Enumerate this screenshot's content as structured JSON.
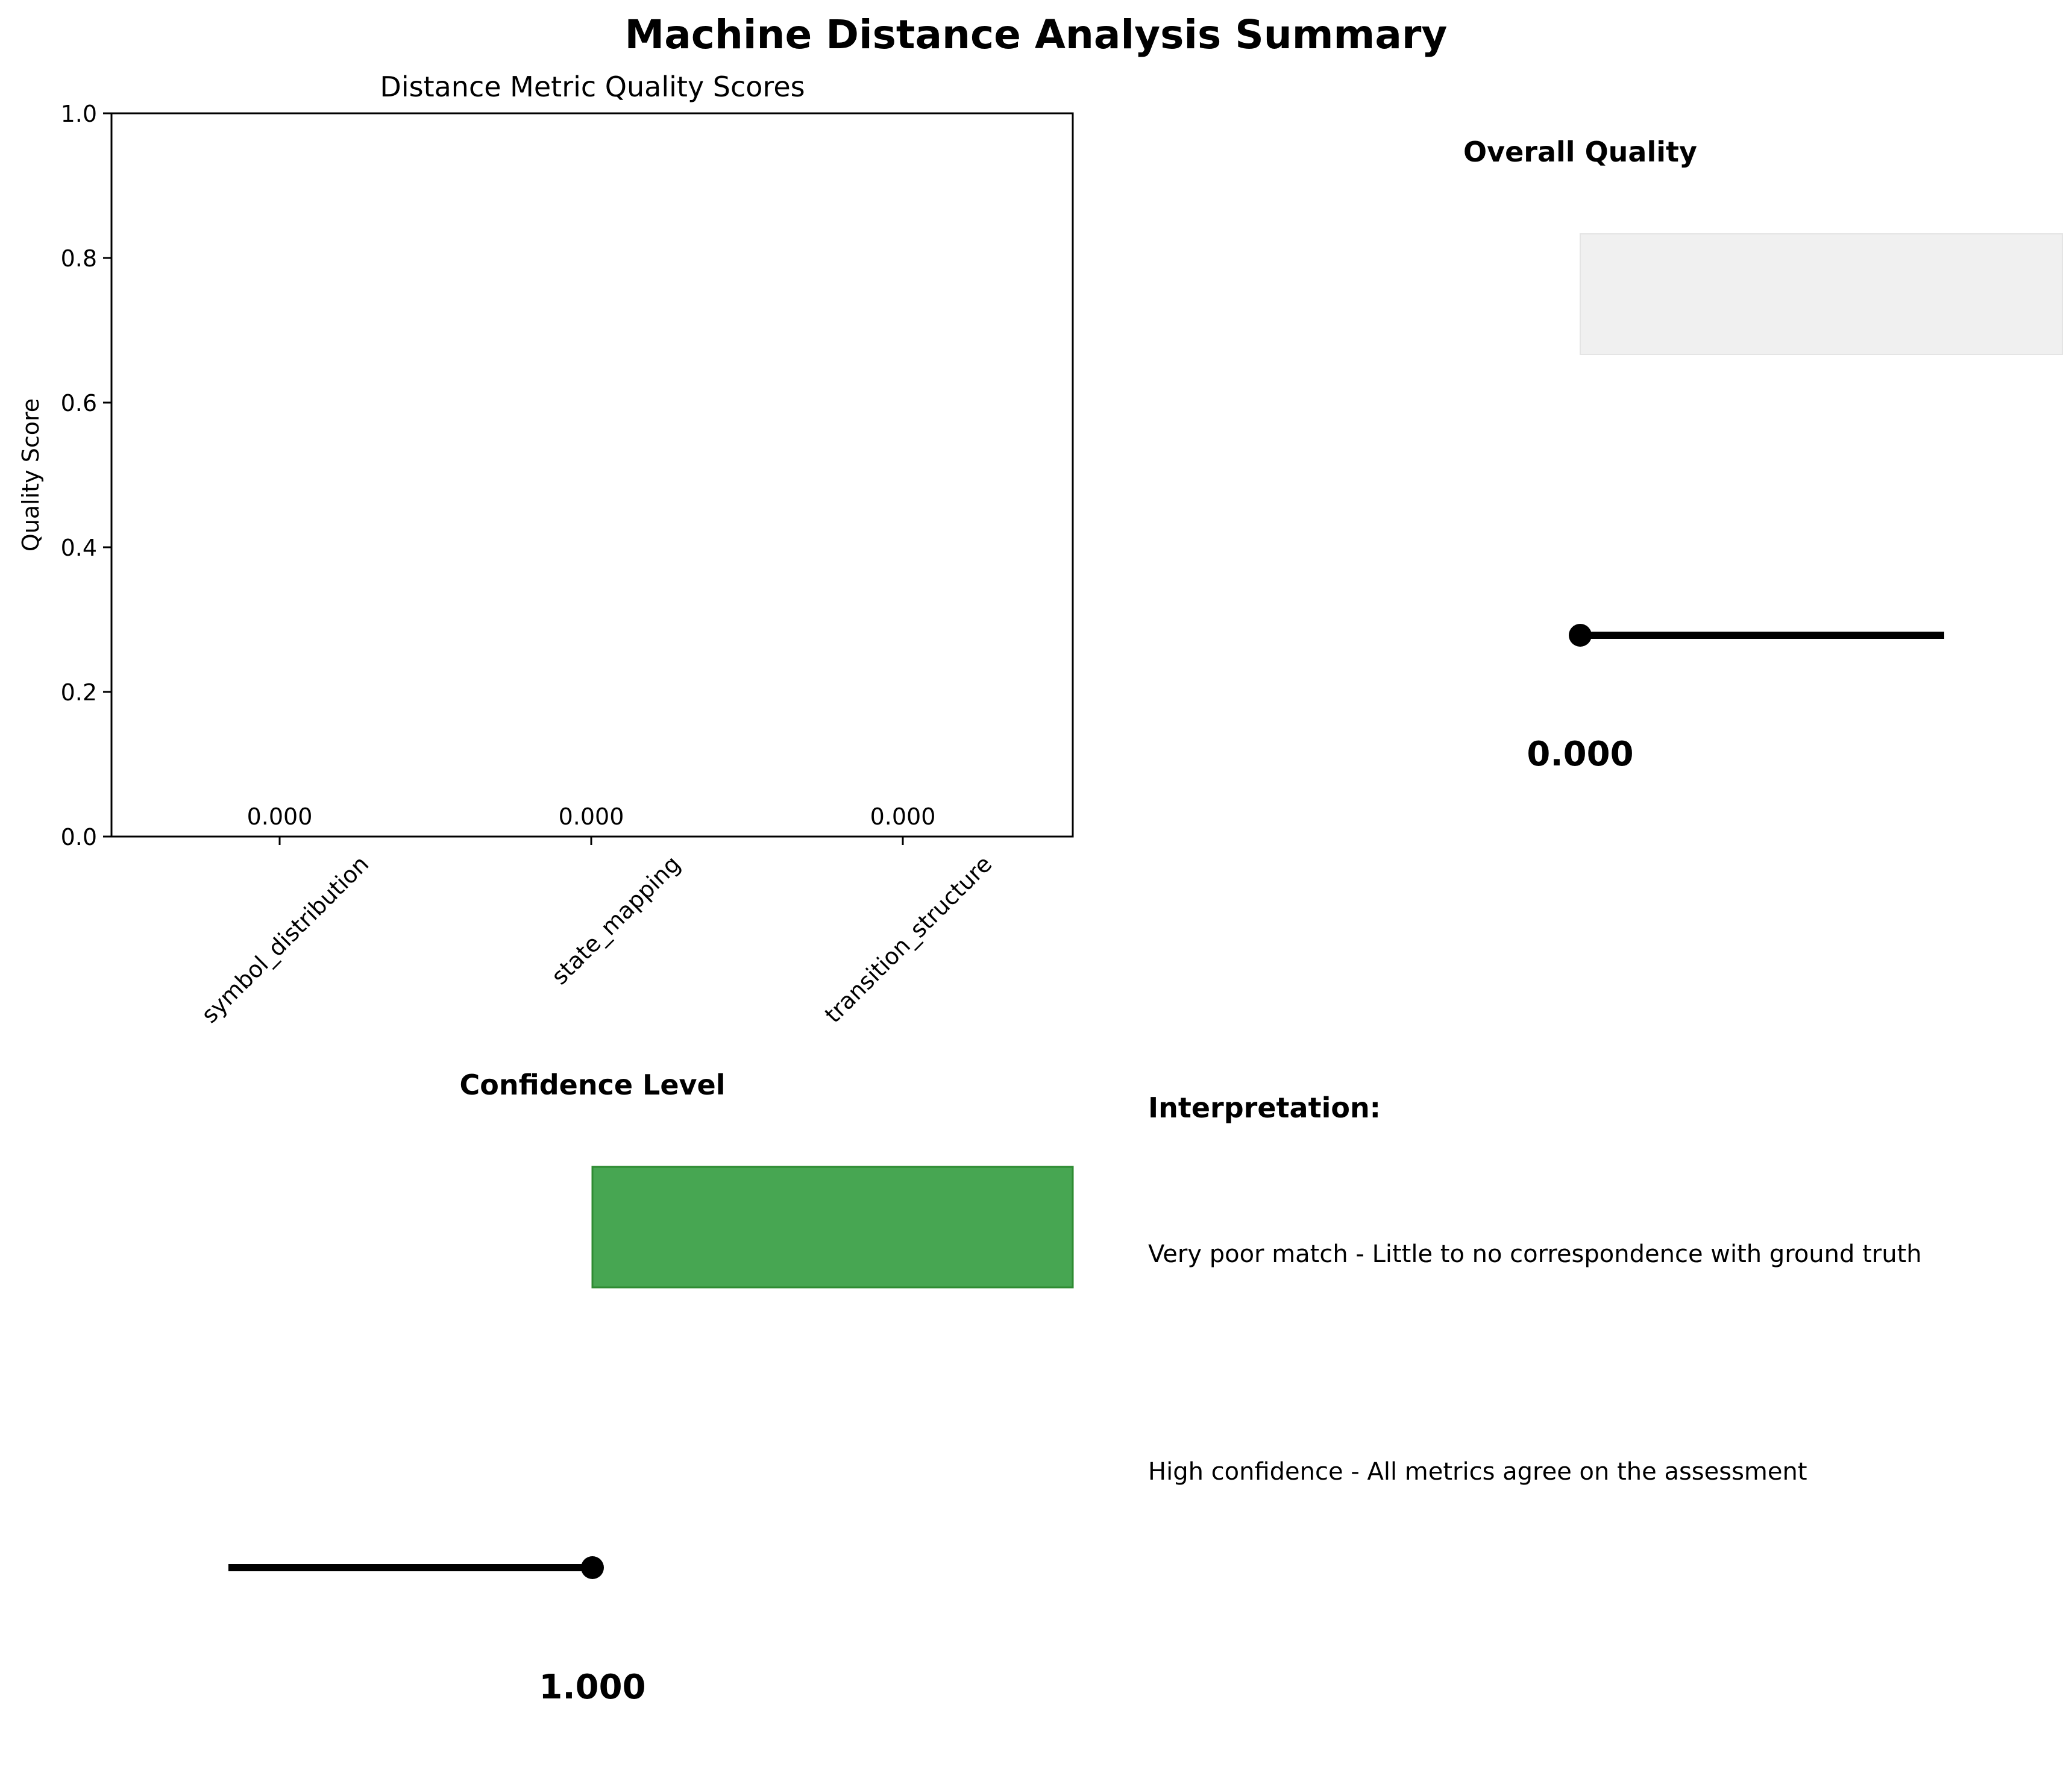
{
  "figure": {
    "title": "Machine Distance Analysis Summary"
  },
  "chart_data": [
    {
      "type": "bar",
      "title": "Distance Metric Quality Scores",
      "xlabel": "",
      "ylabel": "Quality Score",
      "categories": [
        "symbol_distribution",
        "state_mapping",
        "transition_structure"
      ],
      "values": [
        0.0,
        0.0,
        0.0
      ],
      "value_labels": [
        "0.000",
        "0.000",
        "0.000"
      ],
      "ylim": [
        0,
        1
      ],
      "yticks": [
        0.0,
        0.2,
        0.4,
        0.6,
        0.8,
        1.0
      ],
      "ytick_labels": [
        "0.0",
        "0.2",
        "0.4",
        "0.6",
        "0.8",
        "1.0"
      ],
      "grid": false,
      "xtick_rotation": 45
    },
    {
      "type": "gauge",
      "title": "Overall Quality",
      "value": 0.0,
      "value_label": "0.000",
      "level_color": "#f0f0f0"
    },
    {
      "type": "gauge",
      "title": "Confidence Level",
      "value": 1.0,
      "value_label": "1.000",
      "level_color": "#2e9a3a"
    }
  ],
  "interpretation": {
    "heading": "Interpretation:",
    "quality_text": "Very poor match - Little to no correspondence with ground truth",
    "confidence_text": "High confidence - All metrics agree on the assessment"
  }
}
